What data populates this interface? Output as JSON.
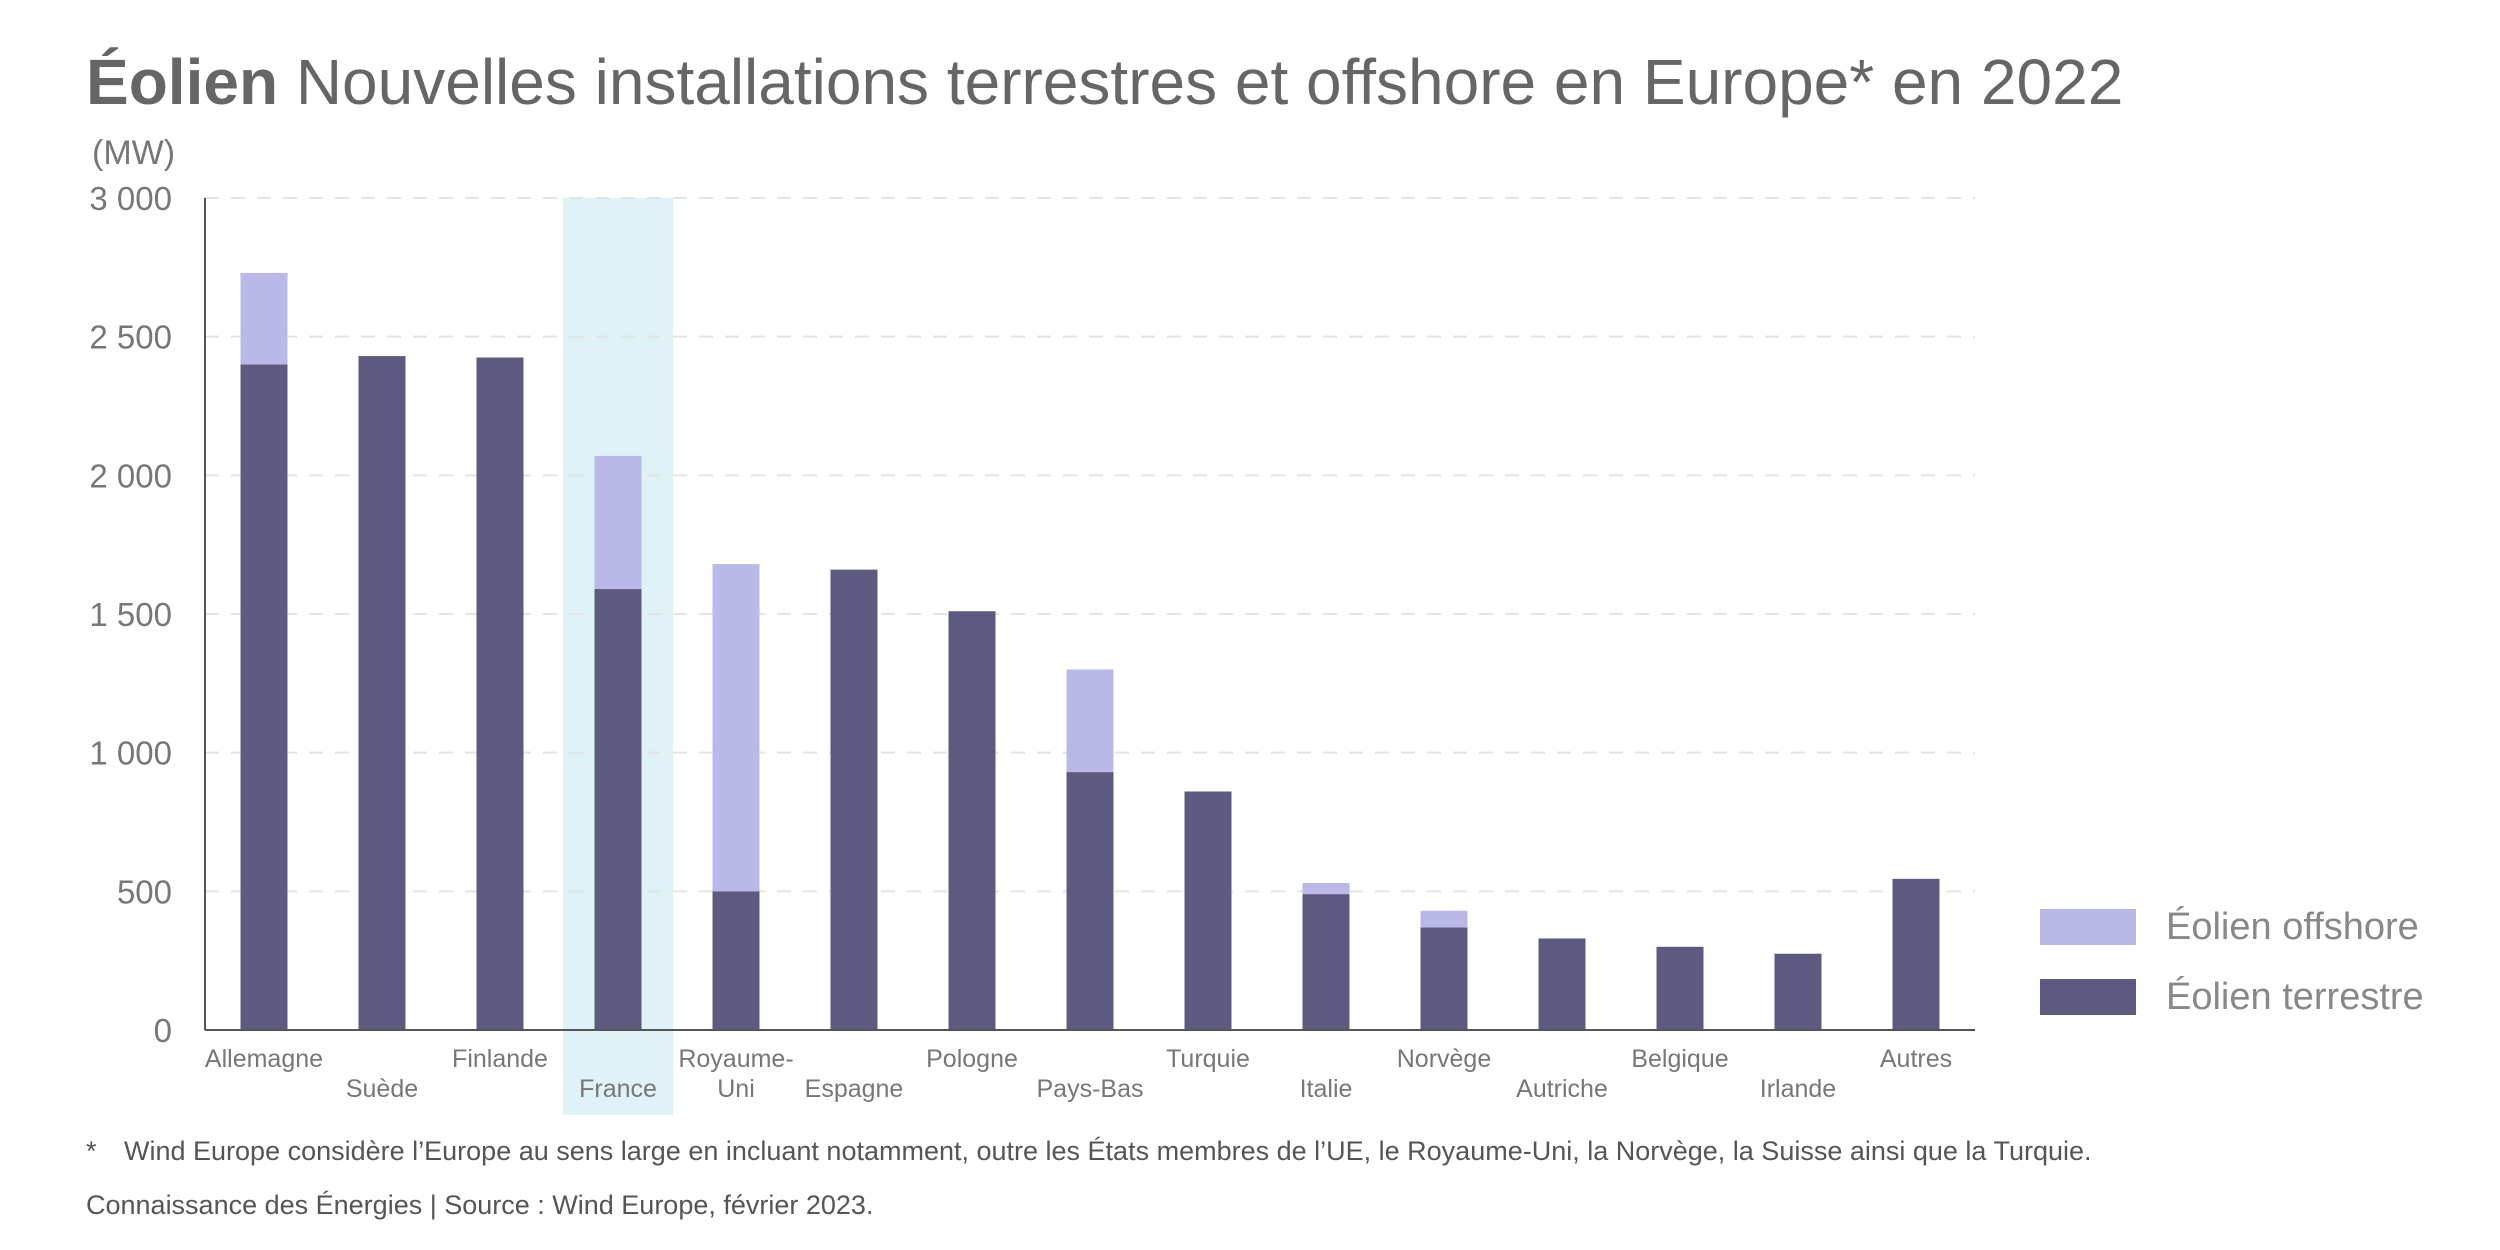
{
  "title": {
    "bold": "Éolien",
    "rest": "Nouvelles installations terrestres et offshore en Europe* en 2022"
  },
  "unit_label": "(MW)",
  "legend": {
    "offshore": "Éolien offshore",
    "terrestre": "Éolien terrestre"
  },
  "colors": {
    "terrestre": "#5d5a7f",
    "offshore": "#b9b8e8",
    "highlight": "#dff3f6",
    "axis": "#555555",
    "grid": "#e3e3e3",
    "tick": "#777777"
  },
  "footnote": {
    "star": "*",
    "text": "Wind Europe considère l’Europe au sens large en incluant notamment, outre les États membres de l’UE, le Royaume-Uni, la Norvège, la Suisse ainsi que la Turquie."
  },
  "source": "Connaissance des Énergies | Source : Wind Europe, février 2023.",
  "chart_data": {
    "type": "bar",
    "stacked": true,
    "categories": [
      "Allemagne",
      "Suède",
      "Finlande",
      "France",
      "Royaume-Uni",
      "Espagne",
      "Pologne",
      "Pays-Bas",
      "Turquie",
      "Italie",
      "Norvège",
      "Autriche",
      "Belgique",
      "Irlande",
      "Autres"
    ],
    "series": [
      {
        "name": "Éolien terrestre",
        "values": [
          2400,
          2430,
          2425,
          1590,
          500,
          1660,
          1510,
          930,
          860,
          490,
          370,
          330,
          300,
          275,
          545
        ]
      },
      {
        "name": "Éolien offshore",
        "values": [
          330,
          0,
          0,
          480,
          1180,
          0,
          0,
          370,
          0,
          40,
          60,
          0,
          0,
          0,
          0
        ]
      }
    ],
    "yticks": [
      "0",
      "500",
      "1 000",
      "1 500",
      "2 000",
      "2 500",
      "3 000"
    ],
    "ylim": [
      0,
      3000
    ],
    "ylabel": "(MW)",
    "highlight_category": "France",
    "grid": true,
    "legend_position": "right"
  }
}
